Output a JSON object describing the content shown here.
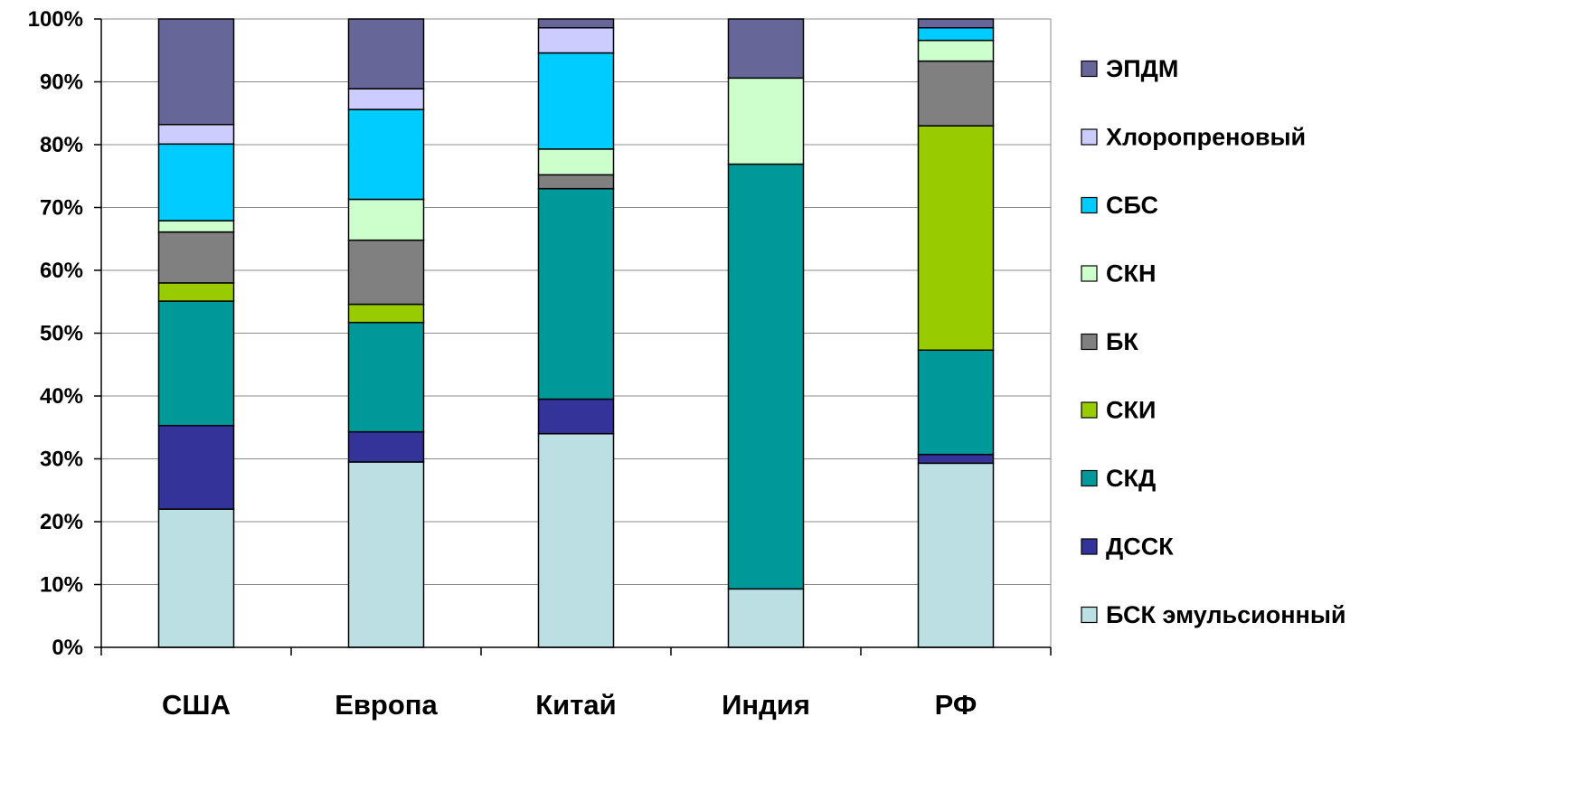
{
  "chart_data": {
    "type": "bar",
    "stacked": "percent",
    "title": "",
    "xlabel": "",
    "ylabel": "",
    "ylim": [
      0,
      100
    ],
    "y_ticks": [
      "0%",
      "10%",
      "20%",
      "30%",
      "40%",
      "50%",
      "60%",
      "70%",
      "80%",
      "90%",
      "100%"
    ],
    "grid": "horizontal",
    "legend_position": "right",
    "categories": [
      "США",
      "Европа",
      "Китай",
      "Индия",
      "РФ"
    ],
    "series": [
      {
        "name": "БСК эмульсионный",
        "color": "#BBDFE3",
        "values": [
          22.0,
          29.5,
          34.0,
          9.3,
          29.3
        ]
      },
      {
        "name": "ДССК",
        "color": "#333399",
        "values": [
          13.3,
          4.8,
          5.5,
          0,
          1.4
        ]
      },
      {
        "name": "СКД",
        "color": "#009999",
        "values": [
          19.8,
          17.4,
          33.5,
          67.6,
          16.6
        ]
      },
      {
        "name": "СКИ",
        "color": "#99CC00",
        "values": [
          2.9,
          2.9,
          0,
          0,
          35.7
        ]
      },
      {
        "name": "БК",
        "color": "#808080",
        "values": [
          8.1,
          10.2,
          2.2,
          0,
          10.3
        ]
      },
      {
        "name": "СКН",
        "color": "#CCFFCC",
        "values": [
          1.8,
          6.5,
          4.1,
          13.7,
          3.3
        ]
      },
      {
        "name": "СБС",
        "color": "#00CCFF",
        "values": [
          12.2,
          14.3,
          15.3,
          0,
          2.0
        ]
      },
      {
        "name": "Хлоропреновый",
        "color": "#CCCCFF",
        "values": [
          3.1,
          3.3,
          4.0,
          0,
          0
        ]
      },
      {
        "name": "ЭПДМ",
        "color": "#666699",
        "values": [
          16.8,
          11.1,
          1.4,
          9.4,
          1.4
        ]
      }
    ]
  }
}
